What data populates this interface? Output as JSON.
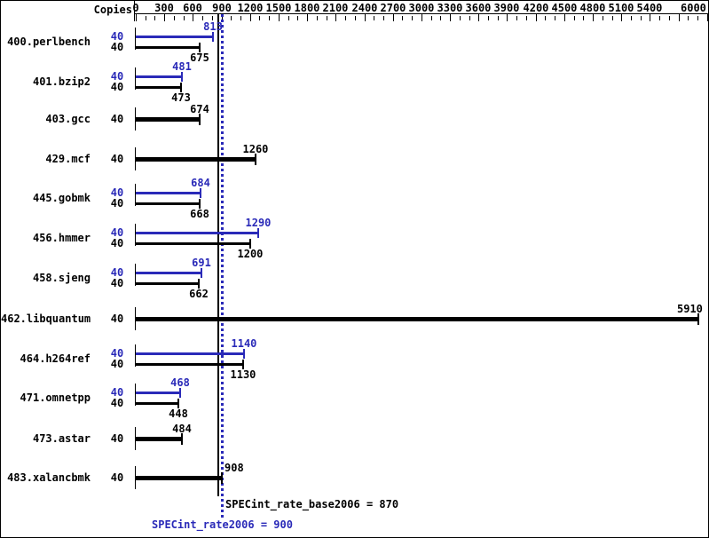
{
  "chart_data": {
    "type": "bar",
    "orientation": "horizontal",
    "copies_header": "Copies",
    "x_axis": {
      "min": 0,
      "max": 6050,
      "minor_step": 100,
      "major_step": 300,
      "labels": [
        "0",
        "300",
        "600",
        "900",
        "1200",
        "1500",
        "1800",
        "2100",
        "2400",
        "2700",
        "3000",
        "3300",
        "3600",
        "3900",
        "4200",
        "4500",
        "4800",
        "5100",
        "5400",
        "6000"
      ]
    },
    "benchmarks": [
      {
        "name": "400.perlbench",
        "copies": "40",
        "peak": 813,
        "base": 675
      },
      {
        "name": "401.bzip2",
        "copies": "40",
        "peak": 481,
        "base": 473
      },
      {
        "name": "403.gcc",
        "copies": "40",
        "peak": null,
        "base": 674
      },
      {
        "name": "429.mcf",
        "copies": "40",
        "peak": null,
        "base": 1260
      },
      {
        "name": "445.gobmk",
        "copies": "40",
        "peak": 684,
        "base": 668
      },
      {
        "name": "456.hmmer",
        "copies": "40",
        "peak": 1290,
        "base": 1200
      },
      {
        "name": "458.sjeng",
        "copies": "40",
        "peak": 691,
        "base": 662
      },
      {
        "name": "462.libquantum",
        "copies": "40",
        "peak": null,
        "base": 5910
      },
      {
        "name": "464.h264ref",
        "copies": "40",
        "peak": 1140,
        "base": 1130
      },
      {
        "name": "471.omnetpp",
        "copies": "40",
        "peak": 468,
        "base": 448
      },
      {
        "name": "473.astar",
        "copies": "40",
        "peak": null,
        "base": 484
      },
      {
        "name": "483.xalancbmk",
        "copies": "40",
        "peak": null,
        "base": 908
      }
    ],
    "reference_lines": [
      {
        "label": "SPECint_rate_base2006 = 870",
        "value": 870,
        "color": "#000000",
        "style": "solid"
      },
      {
        "label": "SPECint_rate2006 = 900",
        "value": 900,
        "color": "#2a2ab8",
        "style": "dotted"
      }
    ],
    "colors": {
      "peak": "#2a2ab8",
      "base": "#000000"
    },
    "legend_position": "none",
    "grid": false
  }
}
